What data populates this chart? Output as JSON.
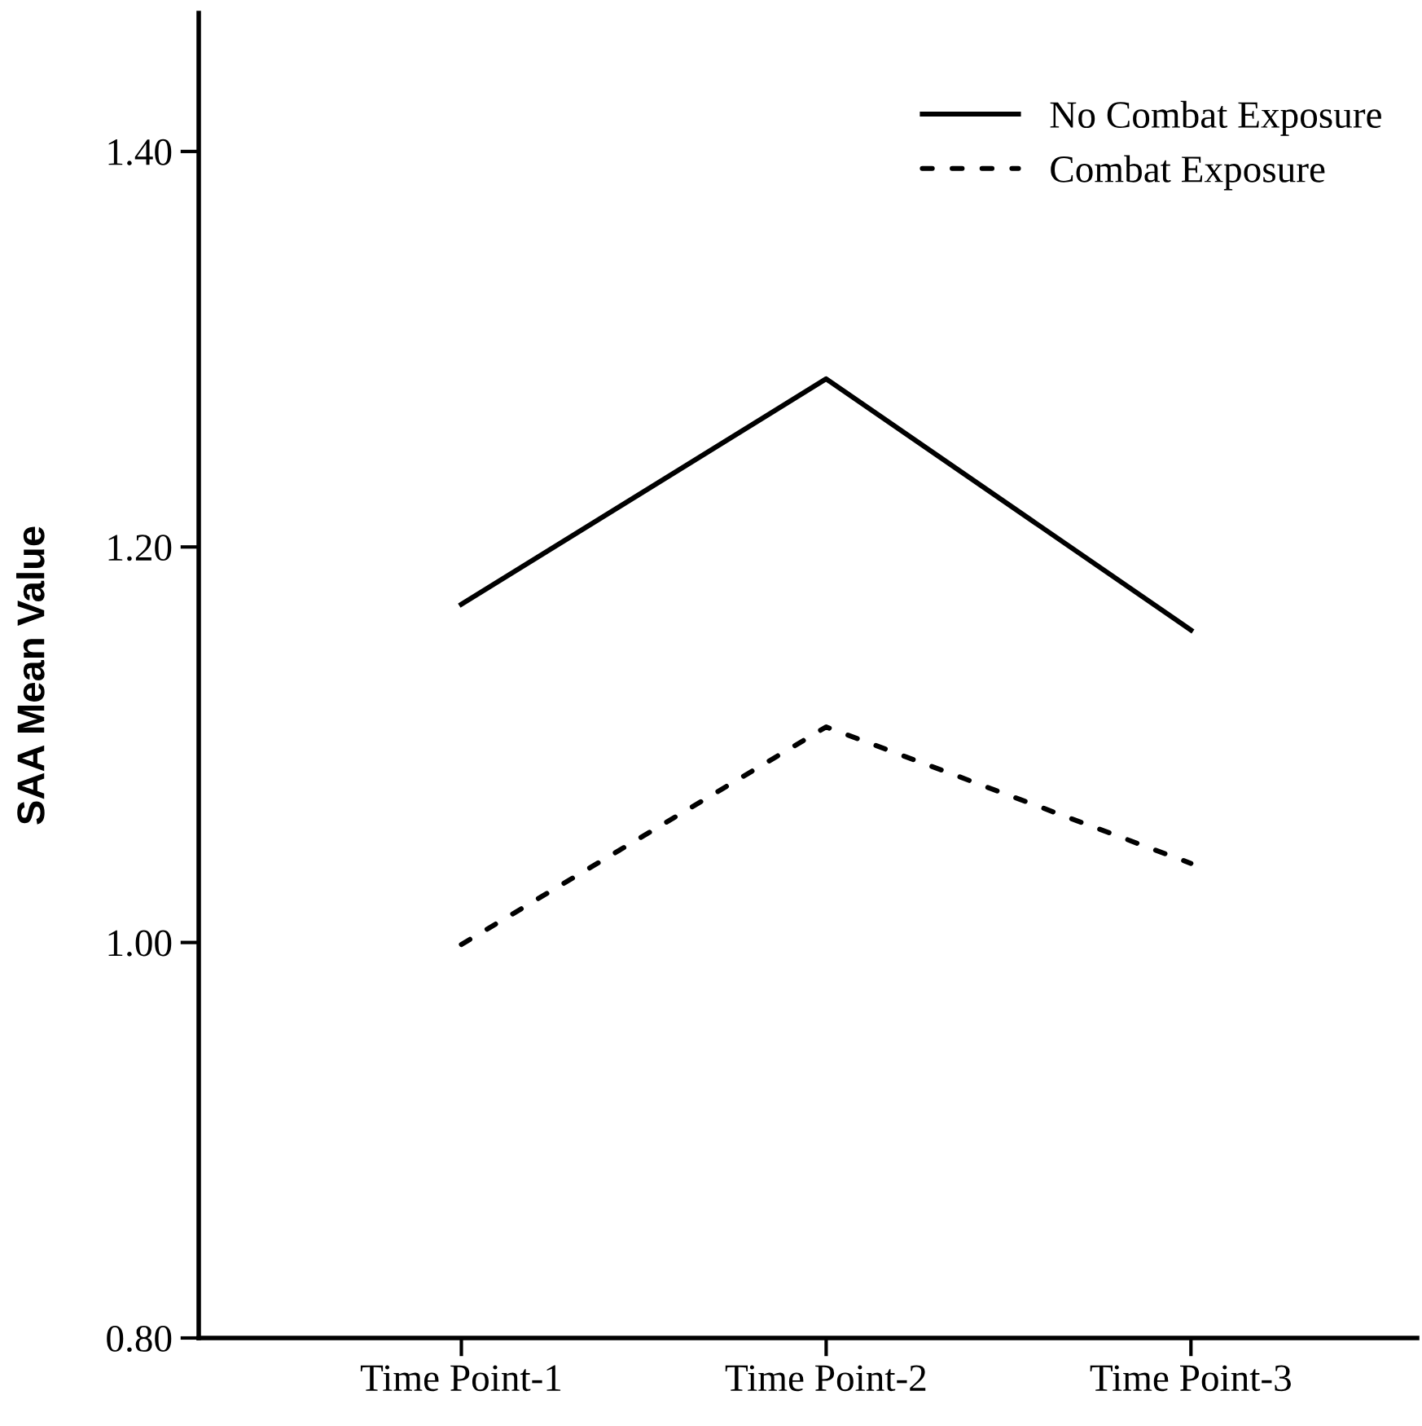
{
  "chart_data": {
    "type": "line",
    "ylabel": "SAA Mean Value",
    "categories": [
      "Time Point-1",
      "Time Point-2",
      "Time Point-3"
    ],
    "series": [
      {
        "name": "No Combat Exposure",
        "color": "#000000",
        "line_style": "solid",
        "values": [
          1.171,
          1.285,
          1.158
        ]
      },
      {
        "name": "Combat Exposure",
        "color": "#000000",
        "line_style": "dotted",
        "values": [
          0.999,
          1.109,
          1.04
        ]
      }
    ],
    "ylim": [
      0.8,
      1.47
    ],
    "yticks": [
      {
        "value": 0.8,
        "label": "0.80"
      },
      {
        "value": 1.0,
        "label": "1.00"
      },
      {
        "value": 1.2,
        "label": "1.20"
      },
      {
        "value": 1.4,
        "label": "1.40"
      }
    ],
    "grid": false,
    "legend": "top right",
    "marker": "none"
  }
}
